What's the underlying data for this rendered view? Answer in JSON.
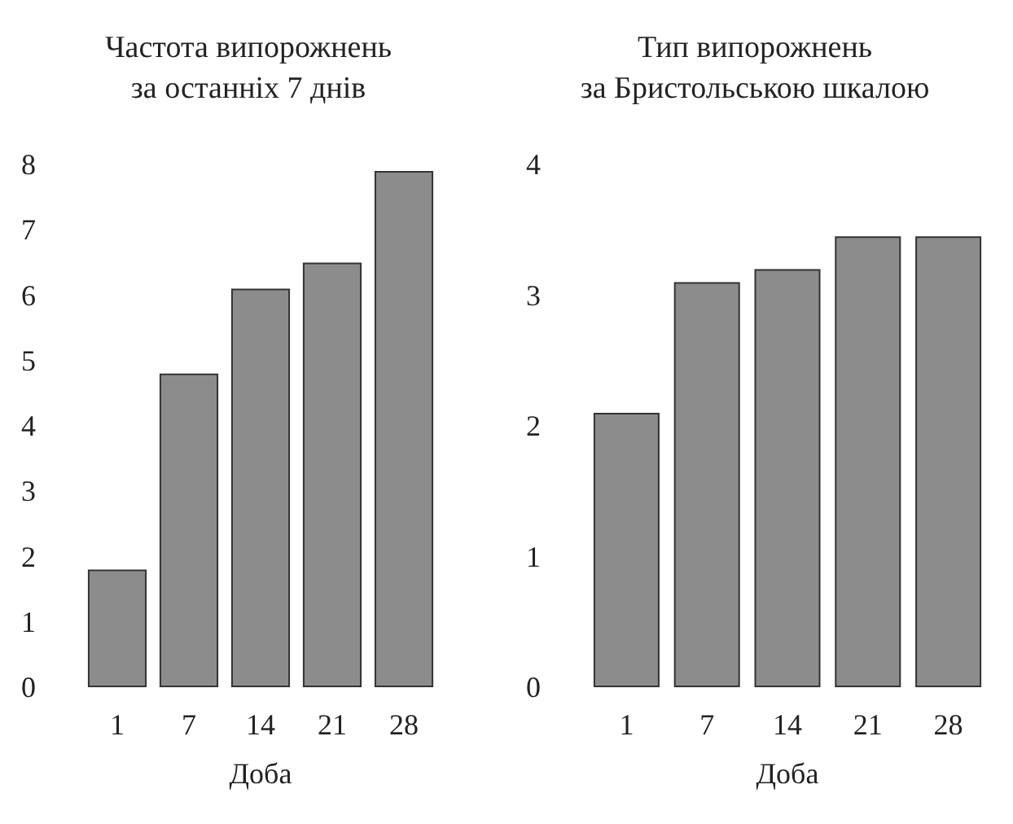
{
  "chart_data": [
    {
      "type": "bar",
      "title": "Частота випорожнень\nза останніх 7 днів",
      "xlabel": "Доба",
      "categories": [
        "1",
        "7",
        "14",
        "21",
        "28"
      ],
      "values": [
        1.8,
        4.8,
        6.1,
        6.5,
        7.9
      ],
      "color": "#8c8c8c",
      "ylim": [
        0,
        8
      ],
      "yticks": [
        0,
        1,
        2,
        3,
        4,
        5,
        6,
        7,
        8
      ],
      "grid": false
    },
    {
      "type": "bar",
      "title": "Тип випорожнень\nза Бристольською шкалою",
      "xlabel": "Доба",
      "categories": [
        "1",
        "7",
        "14",
        "21",
        "28"
      ],
      "values": [
        2.1,
        3.1,
        3.2,
        3.45,
        3.45
      ],
      "color": "#8c8c8c",
      "ylim": [
        0,
        4
      ],
      "yticks": [
        0,
        1,
        2,
        3,
        4
      ],
      "grid": false
    }
  ]
}
